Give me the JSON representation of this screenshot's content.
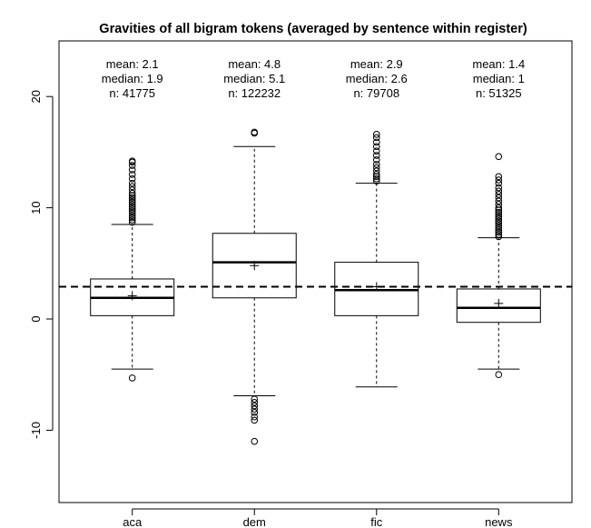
{
  "chart_data": {
    "type": "boxplot",
    "title": "Gravities of all bigram tokens (averaged by sentence within register)",
    "xlabel": "",
    "ylabel": "",
    "ylim": [
      -16.5,
      25
    ],
    "yticks": [
      -10,
      0,
      10,
      20
    ],
    "reference_line": 2.9,
    "grid": false,
    "categories": [
      "aca",
      "dem",
      "fic",
      "news"
    ],
    "boxes": [
      {
        "name": "aca",
        "q1": 0.3,
        "median": 1.9,
        "q3": 3.6,
        "mean": 2.1,
        "whisker_low": -4.5,
        "whisker_high": 8.5,
        "outliers_low": [
          -5.3
        ],
        "outliers_high": [
          8.7,
          8.9,
          9.1,
          9.3,
          9.5,
          9.7,
          9.9,
          10.1,
          10.3,
          10.5,
          10.7,
          10.9,
          11.1,
          11.3,
          11.6,
          11.9,
          12.2,
          12.6,
          13.0,
          13.4,
          13.8,
          14.1,
          14.2
        ],
        "labels": {
          "mean": "mean: 2.1",
          "median": "median: 1.9",
          "n": "n: 41775"
        }
      },
      {
        "name": "dem",
        "q1": 1.9,
        "median": 5.1,
        "q3": 7.7,
        "mean": 4.8,
        "whisker_low": -6.9,
        "whisker_high": 15.5,
        "outliers_low": [
          -7.2,
          -7.5,
          -7.8,
          -8.1,
          -8.4,
          -8.8,
          -9.1,
          -11.0
        ],
        "outliers_high": [
          16.7,
          16.8
        ],
        "labels": {
          "mean": "mean: 4.8",
          "median": "median: 5.1",
          "n": "n: 122232"
        }
      },
      {
        "name": "fic",
        "q1": 0.3,
        "median": 2.6,
        "q3": 5.1,
        "mean": 2.9,
        "whisker_low": -6.1,
        "whisker_high": 12.2,
        "outliers_low": [],
        "outliers_high": [
          12.4,
          12.6,
          12.8,
          13.0,
          13.3,
          13.6,
          13.9,
          14.3,
          14.7,
          15.1,
          15.5,
          15.9,
          16.3,
          16.6
        ],
        "labels": {
          "mean": "mean: 2.9",
          "median": "median: 2.6",
          "n": "n: 79708"
        }
      },
      {
        "name": "news",
        "q1": -0.3,
        "median": 1.0,
        "q3": 2.7,
        "mean": 1.4,
        "whisker_low": -4.5,
        "whisker_high": 7.3,
        "outliers_low": [
          -5.0
        ],
        "outliers_high": [
          7.4,
          7.6,
          7.8,
          8.0,
          8.2,
          8.4,
          8.6,
          8.8,
          9.0,
          9.2,
          9.4,
          9.6,
          9.8,
          10.0,
          10.3,
          10.6,
          10.9,
          11.2,
          11.5,
          11.8,
          12.2,
          12.5,
          12.8,
          14.6
        ],
        "labels": {
          "mean": "mean: 1.4",
          "median": "median: 1",
          "n": "n: 51325"
        }
      }
    ]
  }
}
